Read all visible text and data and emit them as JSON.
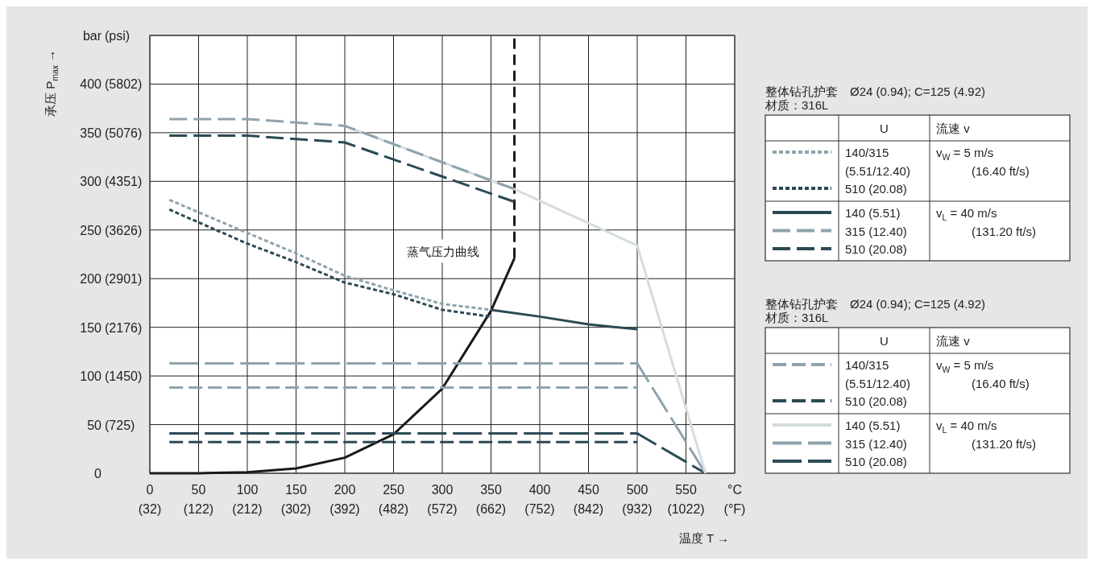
{
  "chart_data": {
    "type": "line",
    "xlabel": "温度 T →",
    "ylabel": "承压 P$_{max}$ →",
    "legend_title": "整体钻孔护套　Ø24 (0.94); C=125 (4.92)\n材质：316L",
    "xlim": [
      0,
      600
    ],
    "ylim": [
      0,
      450
    ],
    "xticks": [
      0,
      50,
      100,
      150,
      200,
      250,
      300,
      350,
      400,
      450,
      500,
      550,
      {
        "value": 600,
        "label": "°C"
      }
    ],
    "x2lim": [
      32,
      1112
    ],
    "x2ticks": [
      {
        "value": 32,
        "label": "(32)"
      },
      {
        "value": 122,
        "label": "(122)"
      },
      {
        "value": 212,
        "label": "(212)"
      },
      {
        "value": 302,
        "label": "(302)"
      },
      {
        "value": 392,
        "label": "(392)"
      },
      {
        "value": 482,
        "label": "(482)"
      },
      {
        "value": 572,
        "label": "(572)"
      },
      {
        "value": 662,
        "label": "(662)"
      },
      {
        "value": 752,
        "label": "(752)"
      },
      {
        "value": 842,
        "label": "(842)"
      },
      {
        "value": 932,
        "label": "(932)"
      },
      {
        "value": 1022,
        "label": "(1022)"
      },
      {
        "value": 1112,
        "label": "(°F)"
      }
    ],
    "yticks": [
      0,
      50,
      100,
      150,
      200,
      250,
      300,
      350,
      400,
      {
        "value": 450,
        "label": "bar"
      }
    ],
    "y2lim": [
      0,
      6527
    ],
    "y2ticks": [
      {
        "value": 725,
        "label": "(725)"
      },
      {
        "value": 1450,
        "label": "(1450)"
      },
      {
        "value": 2176,
        "label": "(2176)"
      },
      {
        "value": 2901,
        "label": "(2901)"
      },
      {
        "value": 3626,
        "label": "(3626)"
      },
      {
        "value": 4351,
        "label": "(4351)"
      },
      {
        "value": 5076,
        "label": "(5076)"
      },
      {
        "value": 5802,
        "label": "(5802)"
      },
      {
        "value": 6527,
        "label": "(psi)"
      }
    ],
    "grid": true,
    "legend": "right",
    "annotations": [
      "U",
      "流速 v",
      "v$_{W}$ = 5 m/s\n(16.40 ft/s)",
      "v$_{L}$  = 40 m/s\n(131.20 ft/s)",
      "蒸气压力曲线"
    ],
    "series": [
      {
        "name": "140/315\n(5.51/12.40)",
        "color": "#8fa3ad",
        "line_style": "dotted",
        "x": [
          20,
          100,
          150,
          200,
          250,
          300,
          350
        ],
        "values": [
          281,
          247,
          226,
          203,
          188,
          174,
          168
        ]
      },
      {
        "name": "510 (20.08)",
        "color": "#2b4a55",
        "line_style": "dotted",
        "x": [
          20,
          100,
          150,
          200,
          250,
          300,
          349
        ],
        "values": [
          271,
          236,
          217,
          196,
          184,
          168,
          161
        ]
      },
      {
        "name": "140 (5.51)",
        "color": "#2b4a55",
        "line_style": "solid",
        "x": [
          350,
          400,
          450,
          500
        ],
        "values": [
          168,
          161,
          153,
          148
        ]
      },
      {
        "name": "315 (12.40)",
        "color": "#8fa3ad",
        "line_style": "dashed",
        "x": [
          20,
          100,
          200,
          374
        ],
        "values": [
          364,
          364,
          357,
          292
        ]
      },
      {
        "name": "510 (20.08)",
        "color": "#2b4a55",
        "line_style": "dashed",
        "x": [
          20,
          100,
          200,
          374
        ],
        "values": [
          347,
          347,
          340,
          279
        ]
      },
      {
        "name": "140/315\n(5.51/12.40)",
        "color": "#8fa3ad",
        "line_style": "dashed",
        "x": [
          20,
          500
        ],
        "values": [
          88,
          88
        ]
      },
      {
        "name": "510 (20.08)",
        "color": "#2b4a55",
        "line_style": "dashed",
        "x": [
          20,
          500
        ],
        "values": [
          32,
          32
        ]
      },
      {
        "name": "140 (5.51)",
        "color": "#d5dcdf",
        "line_style": "solid",
        "x": [
          200,
          374,
          500,
          570
        ],
        "values": [
          357,
          292,
          234,
          0
        ]
      },
      {
        "name": "315 (12.40)",
        "color": "#8fa3ad",
        "line_style": "dashed",
        "x": [
          20,
          500,
          570
        ],
        "values": [
          113,
          113,
          0
        ]
      },
      {
        "name": "510 (20.08)",
        "color": "#2b4a55",
        "line_style": "dashed",
        "x": [
          20,
          500,
          570
        ],
        "values": [
          41,
          41,
          0
        ]
      },
      {
        "color": "#1a1a1a",
        "line_style": "solid",
        "x": [
          0,
          50,
          100,
          150,
          200,
          250,
          300,
          350,
          374
        ],
        "values": [
          0,
          0,
          1,
          5,
          16,
          40,
          87,
          167,
          221
        ]
      },
      {
        "color": "#1a1a1a",
        "line_style": "dashed",
        "x": [
          374,
          374
        ],
        "values": [
          221,
          450
        ]
      }
    ]
  }
}
